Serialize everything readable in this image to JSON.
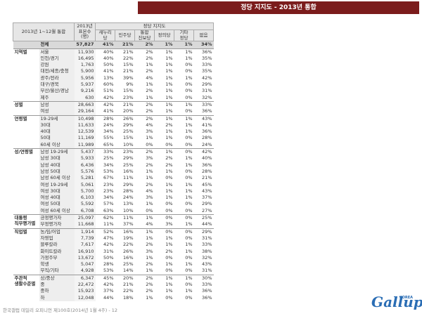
{
  "header": {
    "title": "정당 지지도 - 2013년 통합"
  },
  "table": {
    "corner": "2013년 1~12월 통합",
    "n_header": "2013년\n표본수\n(명)",
    "group_header": "정당 지지도",
    "columns": [
      "새누리당",
      "민주당",
      "통합\n진보당",
      "정의당",
      "기타\n정당",
      "없음"
    ],
    "total": {
      "label": "전체",
      "n": "57,827",
      "values": [
        "41%",
        "21%",
        "2%",
        "1%",
        "1%",
        "34%"
      ]
    },
    "groups": [
      {
        "label": "지역별",
        "rows": [
          {
            "label": "서울",
            "n": "11,930",
            "values": [
              "40%",
              "21%",
              "2%",
              "1%",
              "1%",
              "36%"
            ]
          },
          {
            "label": "인천/경기",
            "n": "16,495",
            "values": [
              "40%",
              "22%",
              "2%",
              "1%",
              "1%",
              "35%"
            ]
          },
          {
            "label": "강원",
            "n": "1,763",
            "values": [
              "50%",
              "15%",
              "1%",
              "1%",
              "0%",
              "33%"
            ]
          },
          {
            "label": "대전/세종/충청",
            "n": "5,900",
            "values": [
              "41%",
              "21%",
              "2%",
              "1%",
              "0%",
              "35%"
            ]
          },
          {
            "label": "광주/전라",
            "n": "5,956",
            "values": [
              "13%",
              "39%",
              "4%",
              "1%",
              "1%",
              "42%"
            ]
          },
          {
            "label": "대구/경북",
            "n": "5,937",
            "values": [
              "60%",
              "9%",
              "1%",
              "1%",
              "0%",
              "29%"
            ]
          },
          {
            "label": "부산/울산/경남",
            "n": "9,216",
            "values": [
              "51%",
              "15%",
              "2%",
              "1%",
              "0%",
              "31%"
            ]
          },
          {
            "label": "제주",
            "n": "630",
            "values": [
              "42%",
              "23%",
              "1%",
              "1%",
              "0%",
              "32%"
            ]
          }
        ]
      },
      {
        "label": "성별",
        "rows": [
          {
            "label": "남성",
            "n": "28,663",
            "values": [
              "42%",
              "21%",
              "2%",
              "1%",
              "1%",
              "33%"
            ]
          },
          {
            "label": "여성",
            "n": "29,164",
            "values": [
              "41%",
              "20%",
              "2%",
              "1%",
              "0%",
              "36%"
            ]
          }
        ]
      },
      {
        "label": "연령별",
        "rows": [
          {
            "label": "19-29세",
            "n": "10,498",
            "values": [
              "28%",
              "26%",
              "2%",
              "1%",
              "1%",
              "43%"
            ]
          },
          {
            "label": "30대",
            "n": "11,633",
            "values": [
              "24%",
              "29%",
              "4%",
              "2%",
              "1%",
              "41%"
            ]
          },
          {
            "label": "40대",
            "n": "12,539",
            "values": [
              "34%",
              "25%",
              "3%",
              "1%",
              "1%",
              "36%"
            ]
          },
          {
            "label": "50대",
            "n": "11,169",
            "values": [
              "55%",
              "15%",
              "1%",
              "1%",
              "0%",
              "28%"
            ]
          },
          {
            "label": "60세 이상",
            "n": "11,989",
            "values": [
              "65%",
              "10%",
              "0%",
              "0%",
              "0%",
              "24%"
            ]
          }
        ]
      },
      {
        "label": "성/연령별",
        "rows": [
          {
            "label": "남성 19-29세",
            "n": "5,437",
            "values": [
              "33%",
              "23%",
              "2%",
              "1%",
              "0%",
              "42%"
            ]
          },
          {
            "label": "남성 30대",
            "n": "5,933",
            "values": [
              "25%",
              "29%",
              "3%",
              "2%",
              "1%",
              "40%"
            ]
          },
          {
            "label": "남성 40대",
            "n": "6,436",
            "values": [
              "34%",
              "25%",
              "2%",
              "2%",
              "1%",
              "36%"
            ]
          },
          {
            "label": "남성 50대",
            "n": "5,576",
            "values": [
              "53%",
              "16%",
              "1%",
              "1%",
              "0%",
              "28%"
            ]
          },
          {
            "label": "남성 60세 이상",
            "n": "5,281",
            "values": [
              "67%",
              "11%",
              "1%",
              "0%",
              "0%",
              "21%"
            ]
          },
          {
            "label": "여성 19-29세",
            "n": "5,061",
            "values": [
              "23%",
              "29%",
              "2%",
              "1%",
              "1%",
              "45%"
            ]
          },
          {
            "label": "여성 30대",
            "n": "5,700",
            "values": [
              "23%",
              "28%",
              "4%",
              "1%",
              "1%",
              "43%"
            ]
          },
          {
            "label": "여성 40대",
            "n": "6,103",
            "values": [
              "34%",
              "24%",
              "3%",
              "1%",
              "1%",
              "37%"
            ]
          },
          {
            "label": "여성 50대",
            "n": "5,592",
            "values": [
              "57%",
              "13%",
              "1%",
              "0%",
              "0%",
              "29%"
            ]
          },
          {
            "label": "여성 60세 이상",
            "n": "6,708",
            "values": [
              "63%",
              "10%",
              "0%",
              "0%",
              "0%",
              "27%"
            ]
          }
        ]
      },
      {
        "label": "대통령\n직무평가별",
        "rows": [
          {
            "label": "긍정평가자",
            "n": "25,097",
            "values": [
              "62%",
              "11%",
              "1%",
              "0%",
              "0%",
              "25%"
            ]
          },
          {
            "label": "부정평가자",
            "n": "11,668",
            "values": [
              "11%",
              "37%",
              "4%",
              "3%",
              "1%",
              "44%"
            ]
          }
        ]
      },
      {
        "label": "직업별",
        "rows": [
          {
            "label": "농/임/어업",
            "n": "1,914",
            "values": [
              "52%",
              "16%",
              "1%",
              "0%",
              "0%",
              "29%"
            ]
          },
          {
            "label": "자영업",
            "n": "7,739",
            "values": [
              "47%",
              "19%",
              "1%",
              "1%",
              "0%",
              "31%"
            ]
          },
          {
            "label": "블루칼라",
            "n": "7,617",
            "values": [
              "42%",
              "22%",
              "2%",
              "1%",
              "1%",
              "33%"
            ]
          },
          {
            "label": "화이트칼라",
            "n": "16,910",
            "values": [
              "31%",
              "26%",
              "3%",
              "2%",
              "1%",
              "38%"
            ]
          },
          {
            "label": "가정주부",
            "n": "13,672",
            "values": [
              "50%",
              "16%",
              "1%",
              "0%",
              "0%",
              "32%"
            ]
          },
          {
            "label": "학생",
            "n": "5,047",
            "values": [
              "28%",
              "25%",
              "2%",
              "1%",
              "1%",
              "43%"
            ]
          },
          {
            "label": "무직/기타",
            "n": "4,928",
            "values": [
              "53%",
              "14%",
              "1%",
              "0%",
              "0%",
              "31%"
            ]
          }
        ]
      },
      {
        "label": "주관적\n생활수준별",
        "rows": [
          {
            "label": "상/중상",
            "n": "6,347",
            "values": [
              "45%",
              "20%",
              "2%",
              "1%",
              "1%",
              "30%"
            ]
          },
          {
            "label": "중",
            "n": "22,472",
            "values": [
              "42%",
              "21%",
              "2%",
              "1%",
              "0%",
              "33%"
            ]
          },
          {
            "label": "중하",
            "n": "15,923",
            "values": [
              "37%",
              "22%",
              "2%",
              "1%",
              "1%",
              "36%"
            ]
          },
          {
            "label": "하",
            "n": "12,048",
            "values": [
              "44%",
              "18%",
              "1%",
              "0%",
              "0%",
              "36%"
            ]
          }
        ]
      }
    ]
  },
  "footer": {
    "source": "한국갤럽 데일리 오피니언 제100호(2014년 1월 4주) - 12",
    "logo": "Gallup",
    "logo_sub": "KOREA"
  }
}
